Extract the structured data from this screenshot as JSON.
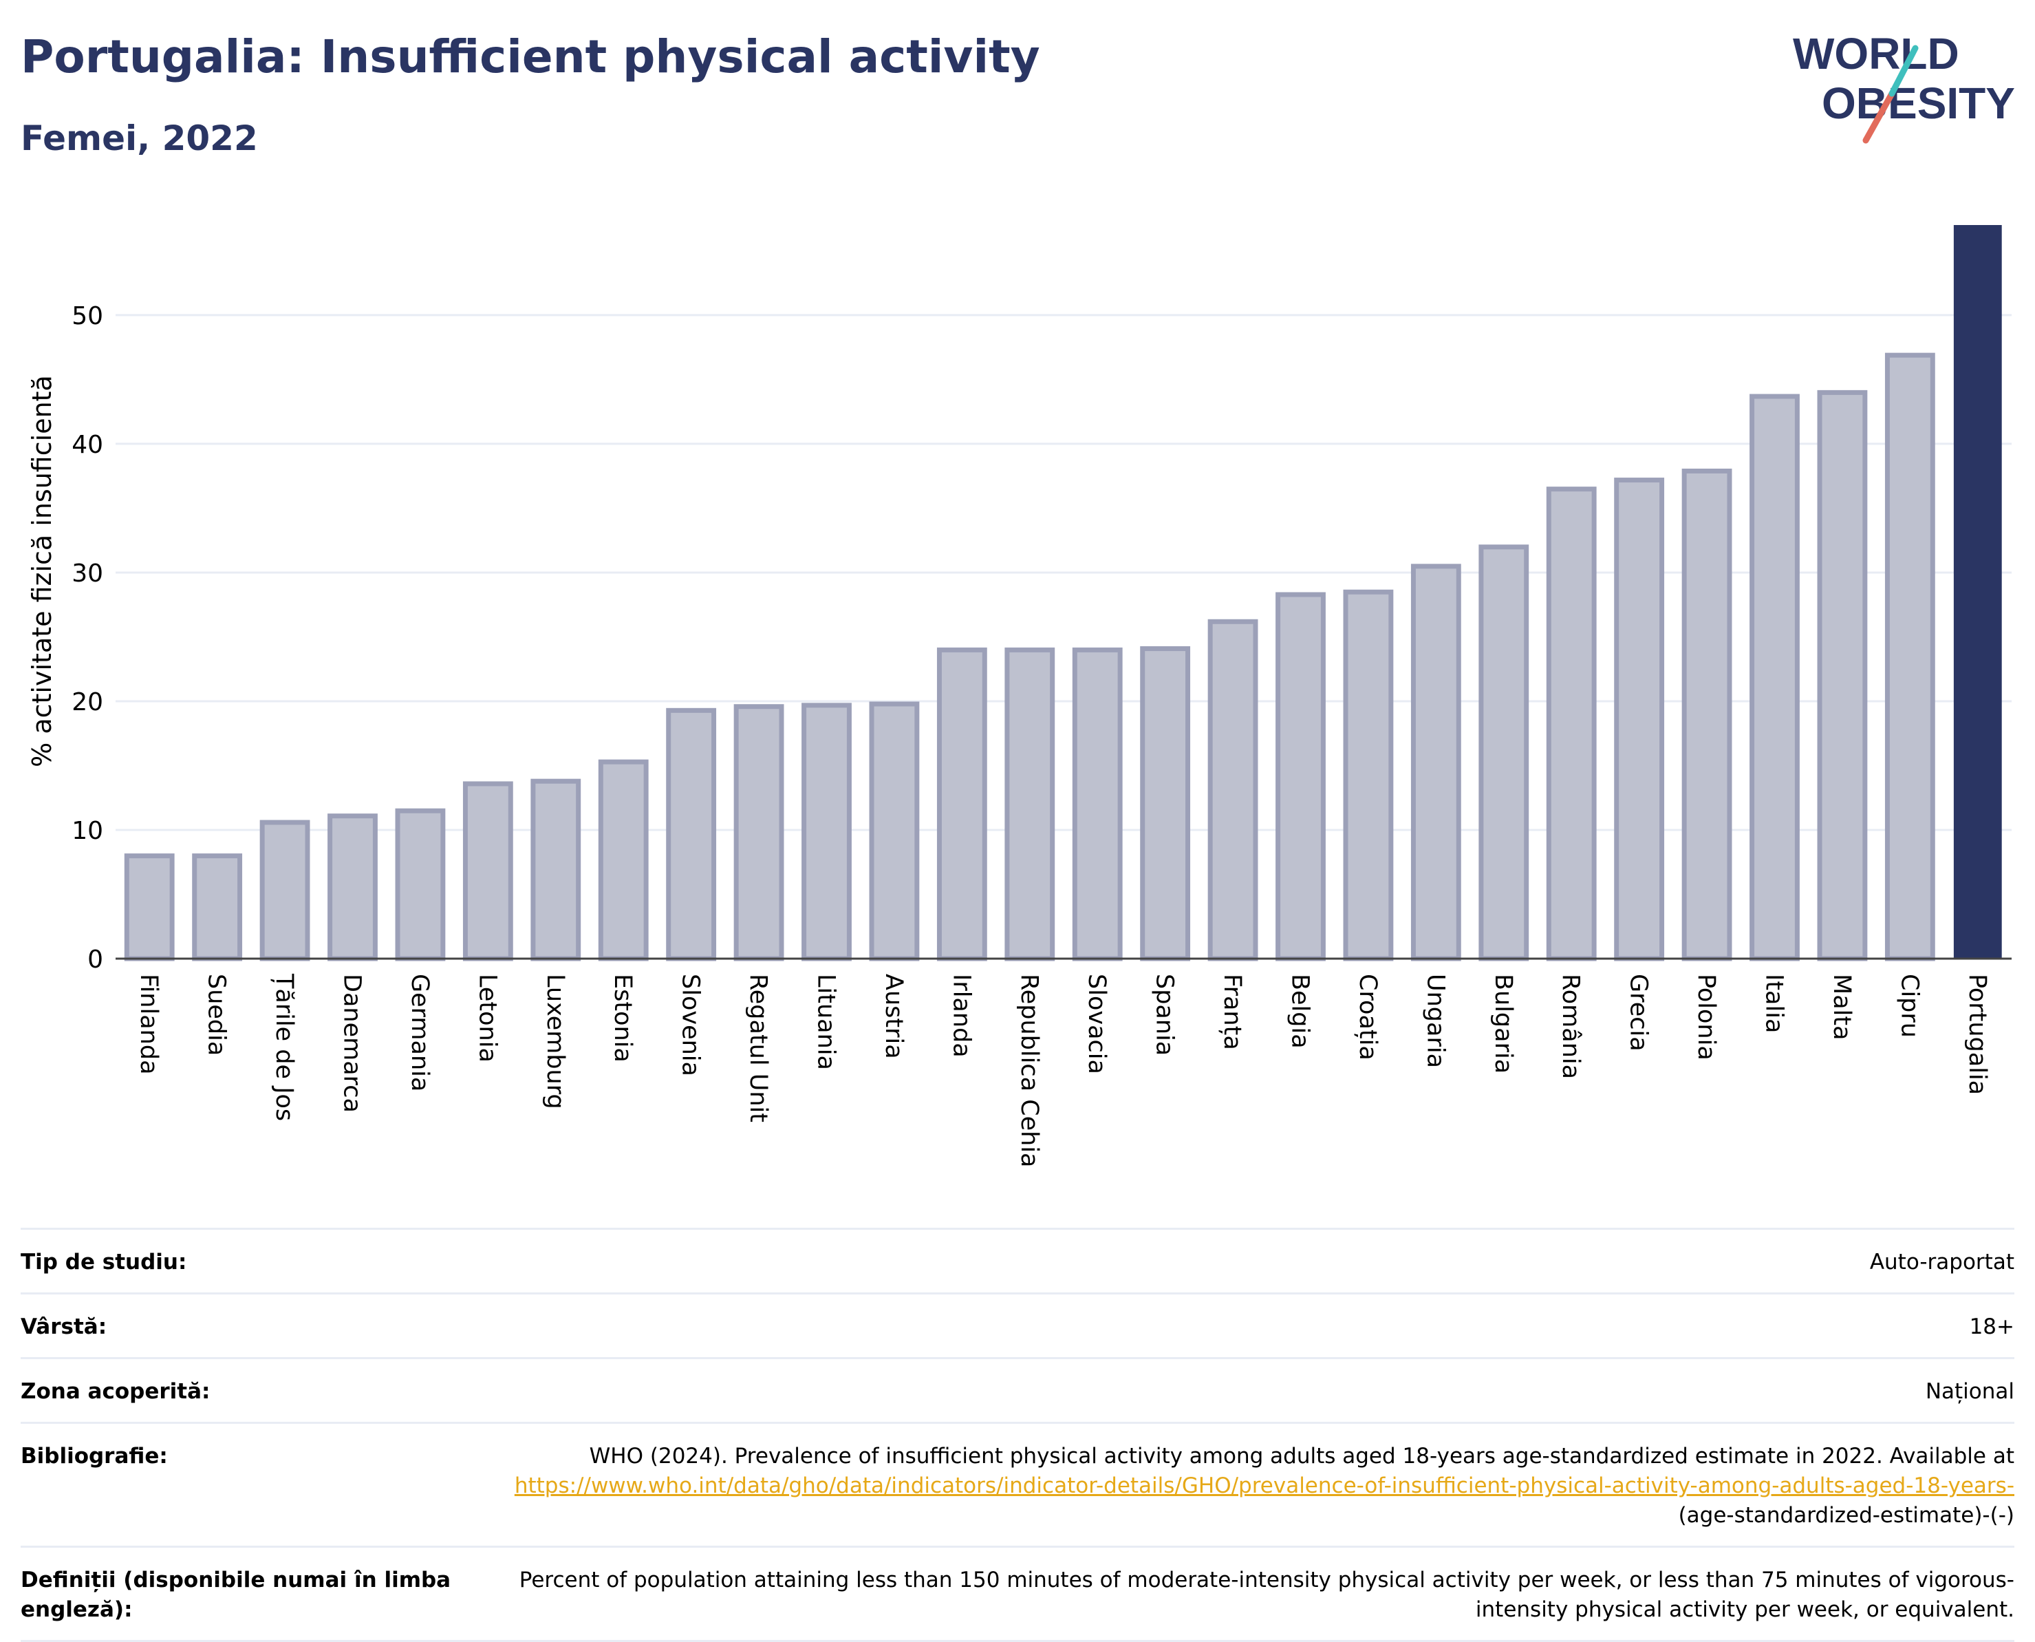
{
  "header": {
    "title": "Portugalia: Insufficient physical activity",
    "subtitle": "Femei, 2022"
  },
  "logo": {
    "line1": "WORLD",
    "line2": "OBESITY"
  },
  "colors": {
    "bar": "#bec1cf",
    "bar_border": "#9ca0b8",
    "highlight": "#2a3563",
    "grid": "#e8ecf4"
  },
  "chart_data": {
    "type": "bar",
    "title": "",
    "xlabel": "",
    "ylabel": "% activitate fizică insuficientă",
    "ylim": [
      0,
      57
    ],
    "yticks": [
      0,
      10,
      20,
      30,
      40,
      50
    ],
    "grid": true,
    "highlight": "Portugalia",
    "categories": [
      "Finlanda",
      "Suedia",
      "Țările de Jos",
      "Danemarca",
      "Germania",
      "Letonia",
      "Luxemburg",
      "Estonia",
      "Slovenia",
      "Regatul Unit",
      "Lituania",
      "Austria",
      "Irlanda",
      "Republica Cehia",
      "Slovacia",
      "Spania",
      "Franța",
      "Belgia",
      "Croația",
      "Ungaria",
      "Bulgaria",
      "România",
      "Grecia",
      "Polonia",
      "Italia",
      "Malta",
      "Cipru",
      "Portugalia"
    ],
    "values": [
      8.2,
      8.2,
      10.8,
      11.3,
      11.7,
      13.8,
      14.0,
      15.5,
      19.5,
      19.8,
      19.9,
      20.0,
      24.2,
      24.2,
      24.2,
      24.3,
      26.4,
      28.5,
      28.7,
      30.7,
      32.2,
      36.7,
      37.4,
      38.1,
      43.9,
      44.2,
      47.1,
      57.0
    ]
  },
  "meta": {
    "study_type_label": "Tip de studiu:",
    "study_type_value": "Auto-raportat",
    "age_label": "Vârstă:",
    "age_value": "18+",
    "area_label": "Zona acoperită:",
    "area_value": "Național",
    "bibliography_label": "Bibliografie:",
    "bibliography_text": "WHO (2024). Prevalence of insufficient physical activity among adults aged 18-years age-standardized estimate in 2022. Available at ",
    "bibliography_link": "https://www.who.int/data/gho/data/indicators/indicator-details/GHO/prevalence-of-insufficient-physical-activity-among-adults-aged-18-years-",
    "bibliography_tail": "(age-standardized-estimate)-(-)",
    "definitions_label": "Definiții (disponibile numai în limba engleză):",
    "definitions_value": "Percent of population attaining less than 150 minutes of moderate-intensity physical activity per week, or less than 75 minutes of vigorous-intensity physical activity per week, or equivalent."
  }
}
